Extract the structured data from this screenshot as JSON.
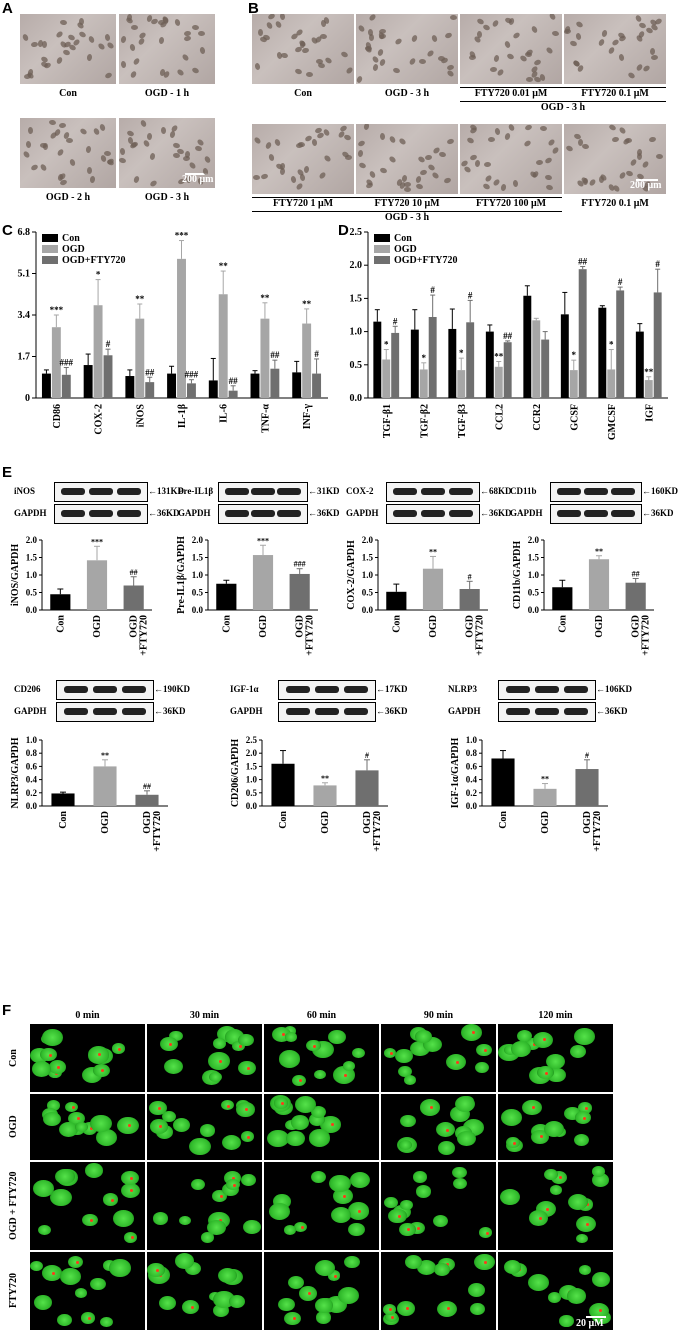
{
  "panels": {
    "A": "A",
    "B": "B",
    "C": "C",
    "D": "D",
    "E": "E",
    "F": "F"
  },
  "panelA": {
    "captions": [
      "Con",
      "OGD - 1 h",
      "OGD - 2 h",
      "OGD - 3 h"
    ],
    "scale": "200 μm"
  },
  "panelB": {
    "captions_top": [
      "Con",
      "OGD - 3 h",
      "FTY720 0.01 μM",
      "FTY720 0.1 μM"
    ],
    "group_top": "OGD - 3 h",
    "captions_bottom": [
      "FTY720 1 μM",
      "FTY720 10 μM",
      "FTY720 100 μM",
      "FTY720 0.1 μM"
    ],
    "group_bottom": "OGD - 3 h",
    "scale": "200 μm"
  },
  "panelE": {
    "blots": [
      {
        "target": "iNOS",
        "target_kd": "131KD",
        "ref": "GAPDH",
        "ref_kd": "36KD"
      },
      {
        "target": "Pre-IL1β",
        "target_kd": "31KD",
        "ref": "GAPDH",
        "ref_kd": "36KD"
      },
      {
        "target": "COX-2",
        "target_kd": "68KD",
        "ref": "GAPDH",
        "ref_kd": "36KD"
      },
      {
        "target": "CD11b",
        "target_kd": "160KD",
        "ref": "GAPDH",
        "ref_kd": "36KD"
      },
      {
        "target": "CD206",
        "target_kd": "190KD",
        "ref": "GAPDH",
        "ref_kd": "36KD"
      },
      {
        "target": "IGF-1α",
        "target_kd": "17KD",
        "ref": "GAPDH",
        "ref_kd": "36KD"
      },
      {
        "target": "NLRP3",
        "target_kd": "106KD",
        "ref": "GAPDH",
        "ref_kd": "36KD"
      }
    ]
  },
  "panelF": {
    "columns": [
      "0 min",
      "30 min",
      "60 min",
      "90 min",
      "120 min"
    ],
    "rows": [
      "Con",
      "OGD",
      "OGD + FTY720",
      "FTY720"
    ],
    "scale": "20 μM"
  },
  "chart_data": [
    {
      "id": "C",
      "type": "bar",
      "categories": [
        "CD86",
        "COX-2",
        "iNOS",
        "IL-1β",
        "IL-6",
        "TNF-α",
        "INF-γ"
      ],
      "series": [
        {
          "name": "Con",
          "color": "#000000",
          "values": [
            1.0,
            1.35,
            0.9,
            1.0,
            0.72,
            1.0,
            1.05
          ]
        },
        {
          "name": "OGD",
          "color": "#a6a6a6",
          "values": [
            2.9,
            3.8,
            3.25,
            5.7,
            4.25,
            3.25,
            3.05
          ]
        },
        {
          "name": "OGD+FTY720",
          "color": "#6f6f6f",
          "values": [
            0.95,
            1.75,
            0.65,
            0.6,
            0.3,
            1.2,
            1.0
          ]
        }
      ],
      "errors": [
        [
          0.15,
          0.45,
          0.25,
          0.3,
          0.9,
          0.12,
          0.45
        ],
        [
          0.5,
          1.05,
          0.6,
          0.75,
          0.95,
          0.65,
          0.6
        ],
        [
          0.3,
          0.25,
          0.2,
          0.15,
          0.2,
          0.35,
          0.6
        ]
      ],
      "sig": [
        [
          "",
          "",
          "",
          "",
          "",
          "",
          ""
        ],
        [
          "***",
          "*",
          "**",
          "***",
          "**",
          "**",
          "**"
        ],
        [
          "###",
          "#",
          "##",
          "###",
          "##",
          "##",
          "#"
        ]
      ],
      "yticks": [
        "0",
        "1.7",
        "3.4",
        "5.1",
        "6.8"
      ],
      "ylim": [
        0,
        6.8
      ],
      "legend": "top-left"
    },
    {
      "id": "D",
      "type": "bar",
      "categories": [
        "TGF-β1",
        "TGF-β2",
        "TGF-β3",
        "CCL2",
        "CCR2",
        "GCSF",
        "GMCSF",
        "IGF"
      ],
      "series": [
        {
          "name": "Con",
          "color": "#000000",
          "values": [
            1.15,
            1.03,
            1.04,
            1.0,
            1.54,
            1.26,
            1.36,
            1.0
          ]
        },
        {
          "name": "OGD",
          "color": "#a6a6a6",
          "values": [
            0.58,
            0.43,
            0.42,
            0.47,
            1.17,
            0.42,
            0.43,
            0.27
          ]
        },
        {
          "name": "OGD+FTY720",
          "color": "#6f6f6f",
          "values": [
            0.98,
            1.22,
            1.14,
            0.84,
            0.88,
            1.94,
            1.62,
            1.59
          ]
        }
      ],
      "errors": [
        [
          0.18,
          0.3,
          0.3,
          0.1,
          0.15,
          0.33,
          0.03,
          0.12
        ],
        [
          0.15,
          0.1,
          0.18,
          0.08,
          0.03,
          0.15,
          0.3,
          0.05
        ],
        [
          0.1,
          0.33,
          0.33,
          0.02,
          0.12,
          0.04,
          0.05,
          0.35
        ]
      ],
      "sig": [
        [
          "",
          "",
          "",
          "",
          "",
          "",
          "",
          ""
        ],
        [
          "*",
          "*",
          "*",
          "**",
          "",
          "*",
          "*",
          "**"
        ],
        [
          "#",
          "#",
          "#",
          "##",
          "",
          "##",
          "#",
          "#"
        ]
      ],
      "yticks": [
        "0.0",
        "0.5",
        "1.0",
        "1.5",
        "2.0",
        "2.5"
      ],
      "ylim": [
        0,
        2.5
      ],
      "legend": "top-left"
    },
    {
      "id": "E1",
      "type": "bar",
      "categories": [
        "Con",
        "OGD",
        "OGD\n+FTY720"
      ],
      "values": [
        0.45,
        1.42,
        0.7
      ],
      "errors": [
        0.15,
        0.4,
        0.25
      ],
      "colors": [
        "#000000",
        "#a6a6a6",
        "#6f6f6f"
      ],
      "sig": [
        "",
        "***",
        "##"
      ],
      "ylabel": "iNOS/GAPDH",
      "yticks": [
        "0.0",
        "0.5",
        "1.0",
        "1.5",
        "2.0"
      ],
      "ylim": [
        0,
        2.0
      ]
    },
    {
      "id": "E2",
      "type": "bar",
      "categories": [
        "Con",
        "OGD",
        "OGD\n+FTY720"
      ],
      "values": [
        0.75,
        1.57,
        1.03
      ],
      "errors": [
        0.1,
        0.28,
        0.15
      ],
      "colors": [
        "#000000",
        "#a6a6a6",
        "#6f6f6f"
      ],
      "sig": [
        "",
        "***",
        "###"
      ],
      "ylabel": "Pre-IL1β/GAPDH",
      "yticks": [
        "0.0",
        "0.5",
        "1.0",
        "1.5",
        "2.0"
      ],
      "ylim": [
        0,
        2.0
      ]
    },
    {
      "id": "E3",
      "type": "bar",
      "categories": [
        "Con",
        "OGD",
        "OGD\n+FTY720"
      ],
      "values": [
        0.52,
        1.18,
        0.6
      ],
      "errors": [
        0.22,
        0.35,
        0.22
      ],
      "colors": [
        "#000000",
        "#a6a6a6",
        "#6f6f6f"
      ],
      "sig": [
        "",
        "**",
        "#"
      ],
      "ylabel": "COX-2/GAPDH",
      "yticks": [
        "0.0",
        "0.5",
        "1.0",
        "1.5",
        "2.0"
      ],
      "ylim": [
        0,
        2.0
      ]
    },
    {
      "id": "E4",
      "type": "bar",
      "categories": [
        "Con",
        "OGD",
        "OGD\n+FTY720"
      ],
      "values": [
        0.65,
        1.45,
        0.78
      ],
      "errors": [
        0.2,
        0.1,
        0.12
      ],
      "colors": [
        "#000000",
        "#a6a6a6",
        "#6f6f6f"
      ],
      "sig": [
        "",
        "**",
        "##"
      ],
      "ylabel": "CD11b/GAPDH",
      "yticks": [
        "0.0",
        "0.5",
        "1.0",
        "1.5",
        "2.0"
      ],
      "ylim": [
        0,
        2.0
      ]
    },
    {
      "id": "E5",
      "type": "bar",
      "categories": [
        "Con",
        "OGD",
        "OGD\n+FTY720"
      ],
      "values": [
        0.19,
        0.6,
        0.17
      ],
      "errors": [
        0.02,
        0.1,
        0.06
      ],
      "colors": [
        "#000000",
        "#a6a6a6",
        "#6f6f6f"
      ],
      "sig": [
        "",
        "**",
        "##"
      ],
      "ylabel": "NLRP3/GAPDH",
      "yticks": [
        "0.0",
        "0.2",
        "0.4",
        "0.6",
        "0.8",
        "1.0"
      ],
      "ylim": [
        0,
        1.0
      ]
    },
    {
      "id": "E6",
      "type": "bar",
      "categories": [
        "Con",
        "OGD",
        "OGD\n+FTY720"
      ],
      "values": [
        1.6,
        0.78,
        1.35
      ],
      "errors": [
        0.5,
        0.1,
        0.4
      ],
      "colors": [
        "#000000",
        "#a6a6a6",
        "#6f6f6f"
      ],
      "sig": [
        "",
        "**",
        "#"
      ],
      "ylabel": "CD206/GAPDH",
      "yticks": [
        "0.0",
        "0.5",
        "1.0",
        "1.5",
        "2.0",
        "2.5"
      ],
      "ylim": [
        0,
        2.5
      ]
    },
    {
      "id": "E7",
      "type": "bar",
      "categories": [
        "Con",
        "OGD",
        "OGD\n+FTY720"
      ],
      "values": [
        0.72,
        0.26,
        0.56
      ],
      "errors": [
        0.12,
        0.08,
        0.14
      ],
      "colors": [
        "#000000",
        "#a6a6a6",
        "#6f6f6f"
      ],
      "sig": [
        "",
        "**",
        "#"
      ],
      "ylabel": "IGF-1α/GAPDH",
      "yticks": [
        "0.0",
        "0.2",
        "0.4",
        "0.6",
        "0.8",
        "1.0"
      ],
      "ylim": [
        0,
        1.0
      ]
    }
  ]
}
